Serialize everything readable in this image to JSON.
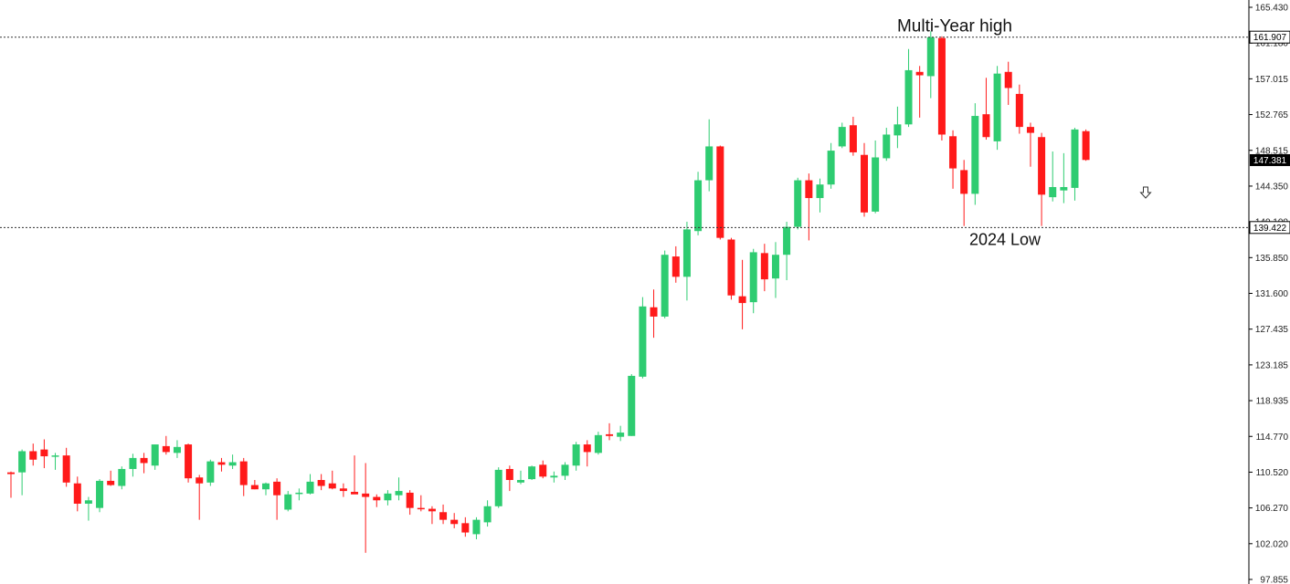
{
  "chart_data": {
    "type": "candlestick",
    "ylim": [
      97.855,
      165.43
    ],
    "y_ticks": [
      "165.430",
      "161.180",
      "157.015",
      "152.765",
      "148.515",
      "144.350",
      "140.100",
      "135.850",
      "131.600",
      "127.435",
      "123.185",
      "118.935",
      "114.770",
      "110.520",
      "106.270",
      "102.020",
      "97.855"
    ],
    "levels": [
      {
        "label": "161.907",
        "value": 161.907,
        "style": "dotted"
      },
      {
        "label": "139.422",
        "value": 139.422,
        "style": "dotted"
      }
    ],
    "current_price": {
      "label": "147.381",
      "value": 147.381
    },
    "annotations": [
      {
        "text": "Multi-Year high",
        "ref": 161.907
      },
      {
        "text": "2024 Low",
        "ref": 139.422
      }
    ],
    "arrow_icon": "down-arrow-icon",
    "colors": {
      "up": "#2ecc71",
      "down": "#ff1a1a",
      "wick_up": "#2ecc71",
      "wick_down": "#ff1a1a",
      "level": "#333333"
    },
    "candles": [
      [
        110.5,
        110.6,
        107.5,
        110.3
      ],
      [
        110.5,
        113.2,
        107.8,
        113.0
      ],
      [
        113.0,
        113.9,
        111.3,
        112.0
      ],
      [
        113.2,
        114.4,
        111.0,
        112.4
      ],
      [
        112.4,
        112.8,
        110.8,
        112.5
      ],
      [
        112.5,
        113.4,
        108.8,
        109.3
      ],
      [
        109.2,
        110.0,
        105.9,
        106.8
      ],
      [
        106.8,
        107.6,
        104.8,
        107.2
      ],
      [
        106.3,
        109.7,
        105.8,
        109.5
      ],
      [
        109.5,
        110.7,
        108.9,
        109.0
      ],
      [
        108.9,
        111.2,
        108.5,
        110.9
      ],
      [
        110.9,
        112.7,
        110.0,
        112.2
      ],
      [
        112.2,
        112.8,
        110.4,
        111.6
      ],
      [
        111.3,
        113.8,
        110.8,
        113.8
      ],
      [
        113.6,
        114.8,
        112.6,
        112.9
      ],
      [
        112.8,
        114.3,
        112.2,
        113.5
      ],
      [
        113.8,
        113.9,
        109.3,
        109.8
      ],
      [
        109.9,
        110.2,
        104.9,
        109.2
      ],
      [
        109.3,
        112.0,
        108.9,
        111.8
      ],
      [
        111.7,
        112.2,
        110.6,
        111.4
      ],
      [
        111.3,
        112.6,
        110.9,
        111.7
      ],
      [
        111.8,
        112.2,
        107.7,
        109.0
      ],
      [
        109.0,
        109.6,
        108.5,
        108.5
      ],
      [
        108.5,
        109.3,
        107.8,
        109.2
      ],
      [
        109.4,
        109.8,
        104.9,
        107.8
      ],
      [
        106.1,
        108.3,
        105.9,
        107.9
      ],
      [
        108.0,
        108.6,
        107.2,
        108.1
      ],
      [
        108.0,
        110.3,
        107.9,
        109.4
      ],
      [
        109.6,
        110.3,
        108.4,
        108.9
      ],
      [
        109.2,
        110.7,
        108.5,
        108.6
      ],
      [
        108.6,
        109.2,
        107.6,
        108.3
      ],
      [
        108.2,
        112.5,
        108.0,
        107.9
      ],
      [
        108.0,
        111.6,
        101.0,
        107.6
      ],
      [
        107.6,
        107.9,
        106.4,
        107.2
      ],
      [
        107.2,
        108.4,
        106.6,
        108.0
      ],
      [
        107.8,
        109.9,
        107.2,
        108.3
      ],
      [
        108.1,
        108.4,
        105.5,
        106.3
      ],
      [
        106.3,
        107.8,
        105.9,
        106.2
      ],
      [
        106.2,
        106.5,
        104.4,
        105.9
      ],
      [
        105.8,
        106.7,
        104.4,
        104.9
      ],
      [
        104.9,
        105.7,
        103.9,
        104.4
      ],
      [
        104.5,
        105.2,
        102.9,
        103.4
      ],
      [
        103.2,
        105.2,
        102.6,
        104.9
      ],
      [
        104.6,
        107.2,
        104.1,
        106.5
      ],
      [
        106.5,
        111.1,
        106.3,
        110.8
      ],
      [
        110.9,
        111.3,
        108.3,
        109.6
      ],
      [
        109.3,
        110.7,
        109.1,
        109.6
      ],
      [
        109.7,
        111.3,
        109.6,
        111.2
      ],
      [
        111.4,
        111.9,
        109.8,
        110.0
      ],
      [
        109.9,
        110.6,
        109.3,
        110.1
      ],
      [
        110.1,
        111.7,
        109.6,
        111.4
      ],
      [
        111.3,
        114.1,
        110.7,
        113.8
      ],
      [
        113.8,
        114.3,
        111.2,
        112.9
      ],
      [
        112.8,
        115.3,
        112.6,
        114.9
      ],
      [
        115.0,
        116.3,
        114.3,
        114.8
      ],
      [
        114.7,
        116.0,
        114.2,
        115.2
      ],
      [
        114.8,
        122.1,
        114.8,
        121.9
      ],
      [
        121.8,
        131.2,
        121.6,
        130.1
      ],
      [
        130.0,
        132.1,
        126.4,
        128.9
      ],
      [
        128.9,
        136.7,
        128.7,
        136.2
      ],
      [
        136.0,
        137.2,
        132.9,
        133.6
      ],
      [
        133.6,
        140.1,
        130.8,
        139.2
      ],
      [
        139.0,
        146.0,
        138.5,
        145.0
      ],
      [
        145.0,
        152.2,
        143.7,
        149.0
      ],
      [
        149.0,
        149.1,
        138.0,
        138.2
      ],
      [
        138.0,
        138.2,
        130.9,
        131.4
      ],
      [
        131.3,
        135.6,
        127.4,
        130.5
      ],
      [
        130.6,
        136.9,
        129.3,
        136.5
      ],
      [
        136.4,
        137.5,
        131.9,
        133.3
      ],
      [
        133.4,
        137.7,
        131.1,
        136.2
      ],
      [
        136.2,
        140.1,
        133.2,
        139.5
      ],
      [
        139.5,
        145.3,
        139.2,
        145.0
      ],
      [
        145.0,
        145.8,
        137.9,
        142.9
      ],
      [
        142.9,
        145.2,
        141.2,
        144.5
      ],
      [
        144.5,
        149.4,
        144.0,
        148.5
      ],
      [
        149.0,
        151.8,
        148.8,
        151.3
      ],
      [
        151.5,
        152.5,
        147.9,
        148.3
      ],
      [
        148.0,
        149.4,
        140.7,
        141.2
      ],
      [
        141.3,
        149.7,
        141.1,
        147.7
      ],
      [
        147.6,
        151.2,
        147.3,
        150.4
      ],
      [
        150.3,
        153.7,
        148.8,
        151.6
      ],
      [
        151.6,
        160.5,
        151.3,
        158.0
      ],
      [
        157.8,
        158.5,
        152.4,
        157.4
      ],
      [
        157.3,
        162.6,
        154.7,
        161.9
      ],
      [
        161.8,
        162.0,
        149.7,
        150.4
      ],
      [
        150.2,
        150.9,
        144.0,
        146.4
      ],
      [
        146.2,
        147.4,
        139.6,
        143.4
      ],
      [
        143.4,
        154.1,
        142.1,
        152.6
      ],
      [
        152.8,
        157.1,
        149.8,
        150.1
      ],
      [
        149.6,
        158.5,
        148.6,
        157.6
      ],
      [
        157.8,
        159.0,
        153.9,
        155.9
      ],
      [
        155.2,
        156.3,
        150.5,
        151.3
      ],
      [
        151.3,
        151.8,
        146.6,
        150.6
      ],
      [
        150.1,
        150.6,
        139.6,
        143.3
      ],
      [
        143.0,
        148.4,
        142.5,
        144.2
      ],
      [
        143.8,
        148.2,
        142.3,
        144.2
      ],
      [
        144.1,
        151.2,
        142.6,
        151.0
      ],
      [
        150.8,
        151.0,
        147.3,
        147.4
      ]
    ]
  }
}
